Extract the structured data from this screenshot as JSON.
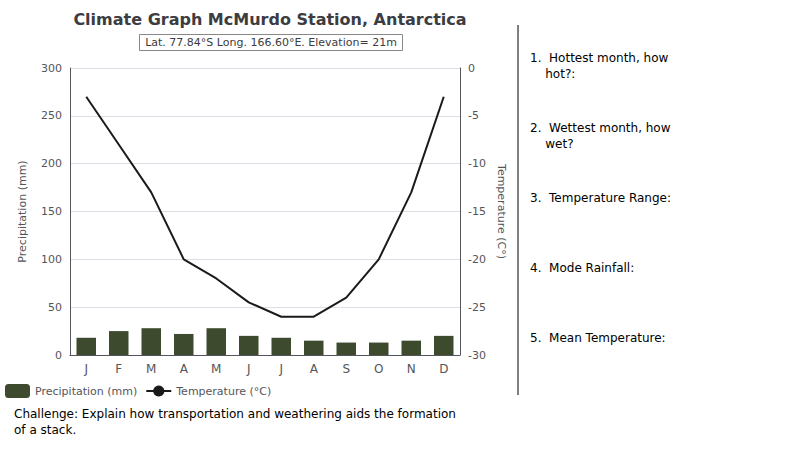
{
  "chart_data": {
    "type": "bar",
    "title": "Climate Graph McMurdo Station, Antarctica",
    "subtitle": "Lat. 77.84°S Long. 166.60°E. Elevation= 21m",
    "categories": [
      "J",
      "F",
      "M",
      "A",
      "M",
      "J",
      "J",
      "A",
      "S",
      "O",
      "N",
      "D"
    ],
    "series": [
      {
        "name": "Precipitation (mm)",
        "type": "bar",
        "color": "#3d4a2e",
        "values": [
          18,
          25,
          28,
          22,
          28,
          20,
          18,
          15,
          13,
          13,
          15,
          20
        ]
      },
      {
        "name": "Temperature (°C)",
        "type": "line",
        "color": "#1a1a1a",
        "axis": "y2",
        "values": [
          -3,
          -8,
          -13,
          -20,
          -22,
          -24.5,
          -26,
          -26,
          -24,
          -20,
          -13,
          -3
        ]
      }
    ],
    "ylabel": "Precipitation (mm)",
    "y2label": "Temperature (C°)",
    "ylim": [
      0,
      300
    ],
    "yticks": [
      0,
      50,
      100,
      150,
      200,
      250,
      300
    ],
    "y2lim": [
      -30,
      0
    ],
    "y2ticks": [
      0,
      -5,
      -10,
      -15,
      -20,
      -25,
      -30
    ],
    "grid": true,
    "legend": "bottom",
    "annotations": [
      "1.  Hottest month, how\n    hot?:",
      "2.  Wettest month, how\n    wet?",
      "3.  Temperature Range:",
      "4.  Mode Rainfall:",
      "5.  Mean Temperature:",
      "Challenge: Explain how transportation and weathering aids the formation\nof a stack."
    ]
  }
}
